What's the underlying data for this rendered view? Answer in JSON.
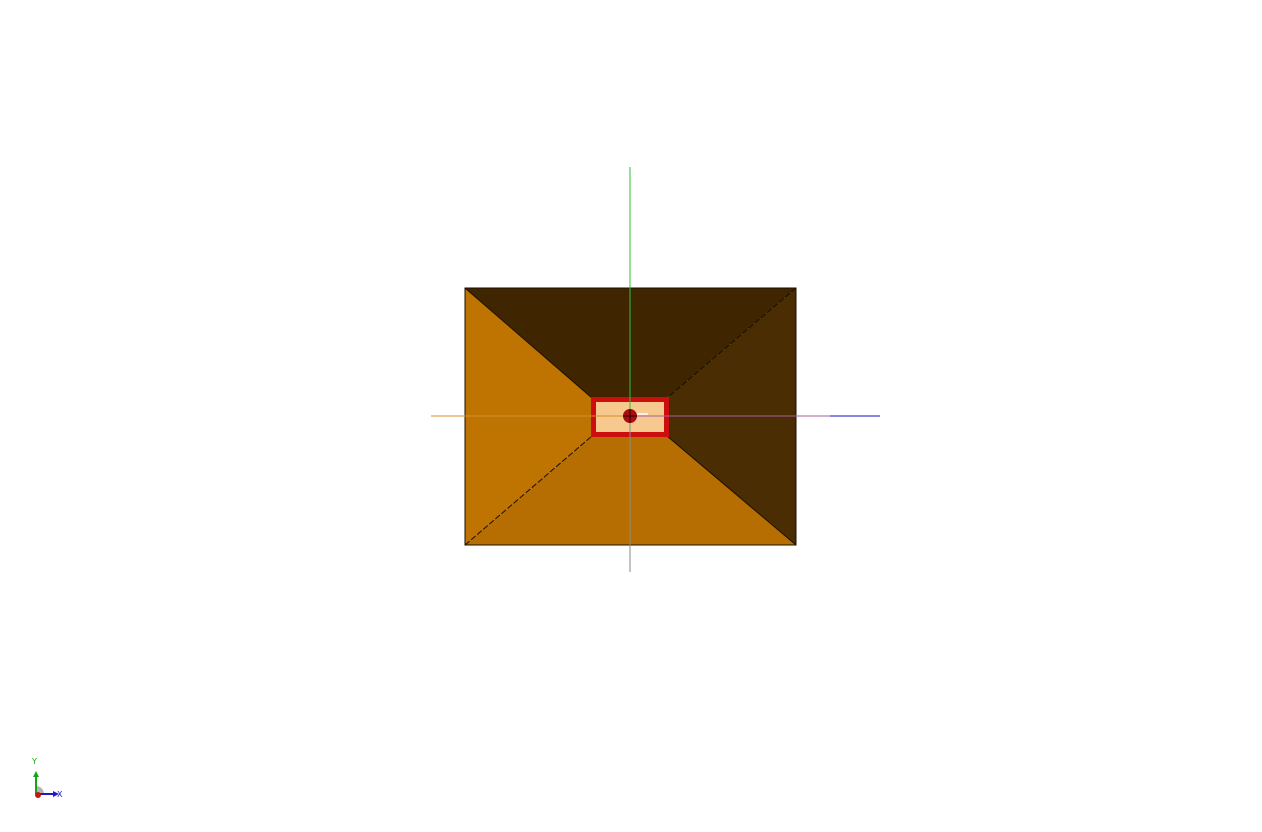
{
  "scene": {
    "background": "#ffffff",
    "colors": {
      "frustum_top_face": "#3f2601",
      "frustum_right_face": "#4a2d02",
      "frustum_left_face": "#bf7300",
      "frustum_bottom_face": "#b66d02",
      "frustum_outline": "#1a1000",
      "inner_cavity_fill": "#f7c98f",
      "inner_cavity_border": "#cc0e0e",
      "port_marker": "#aa0d10",
      "axis_y": "#2fc232",
      "axis_x_negative": "#d48f2a",
      "axis_x_positive": "#1212c7",
      "axis_x_mid": "#a4609a",
      "axis_z_lower": "#8a8a8a"
    }
  },
  "orientation_triad": {
    "y_label": "Y",
    "x_label": "X",
    "icon": "axes-triad-icon",
    "colors": {
      "y_axis": "#13a813",
      "x_axis": "#1c1cc4",
      "z_axis": "#c81414",
      "hub": "#9a9a9a"
    }
  }
}
